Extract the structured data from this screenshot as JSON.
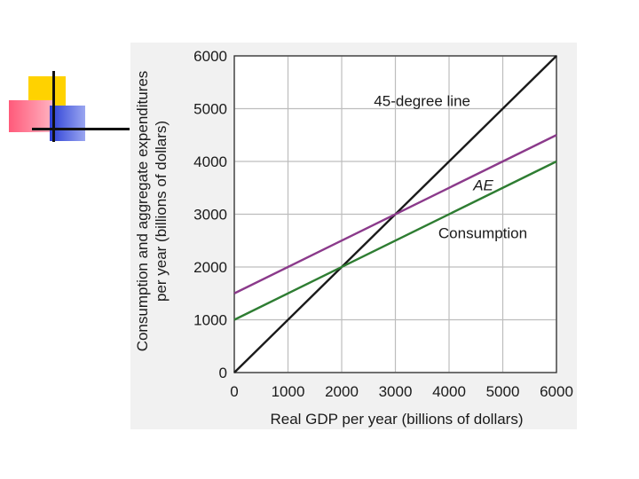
{
  "chart_data": {
    "type": "line",
    "xlabel": "Real GDP per year (billions of dollars)",
    "ylabel_line1": "Consumption and aggregate expenditures",
    "ylabel_line2": "per year (billions of dollars)",
    "xlim": [
      0,
      6000
    ],
    "ylim": [
      0,
      6000
    ],
    "xticks": [
      0,
      1000,
      2000,
      3000,
      4000,
      5000,
      6000
    ],
    "yticks": [
      0,
      1000,
      2000,
      3000,
      4000,
      5000,
      6000
    ],
    "grid": true,
    "series": [
      {
        "name": "45-degree line",
        "label": "45-degree line",
        "italic": false,
        "color": "#1a1a1a",
        "x": [
          0,
          6000
        ],
        "y": [
          0,
          6000
        ],
        "label_at": [
          2600,
          5050
        ]
      },
      {
        "name": "AE",
        "label": "AE",
        "italic": true,
        "color": "#8b3a8b",
        "x": [
          0,
          6000
        ],
        "y": [
          1500,
          4500
        ],
        "label_at": [
          4450,
          3450
        ]
      },
      {
        "name": "Consumption",
        "label": "Consumption",
        "italic": false,
        "color": "#2e7d32",
        "x": [
          0,
          6000
        ],
        "y": [
          1000,
          4000
        ],
        "label_at": [
          3800,
          2550
        ]
      }
    ]
  },
  "colors": {
    "grid": "#bdbdbd",
    "panel": "#f1f1f1",
    "axis": "#333333"
  }
}
